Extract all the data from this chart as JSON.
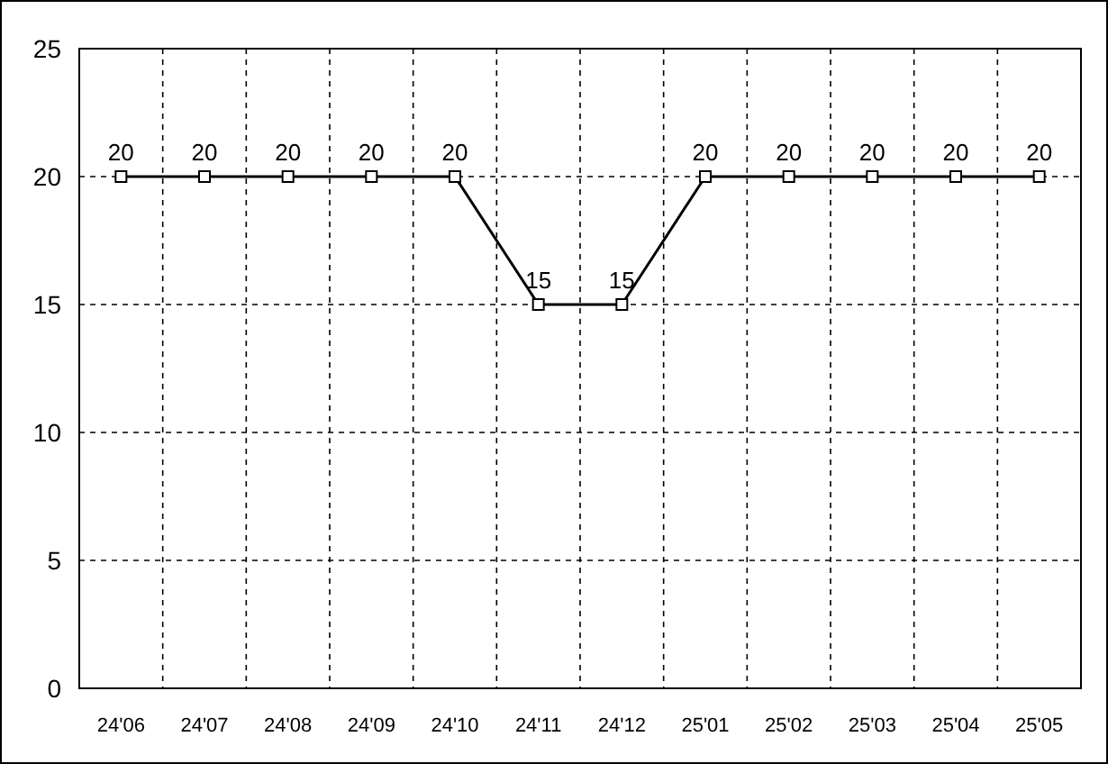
{
  "chart_data": {
    "type": "line",
    "categories": [
      "24'06",
      "24'07",
      "24'08",
      "24'09",
      "24'10",
      "24'11",
      "24'12",
      "25'01",
      "25'02",
      "25'03",
      "25'04",
      "25'05"
    ],
    "series": [
      {
        "color": "#000000",
        "values": [
          20,
          20,
          20,
          20,
          20,
          15,
          15,
          20,
          20,
          20,
          20,
          20
        ]
      }
    ],
    "ylim": [
      0,
      25
    ],
    "yticks": [
      0,
      5,
      10,
      15,
      20,
      25
    ],
    "grid": true,
    "marker": "square",
    "line_style": "solid",
    "data_labels": true
  }
}
